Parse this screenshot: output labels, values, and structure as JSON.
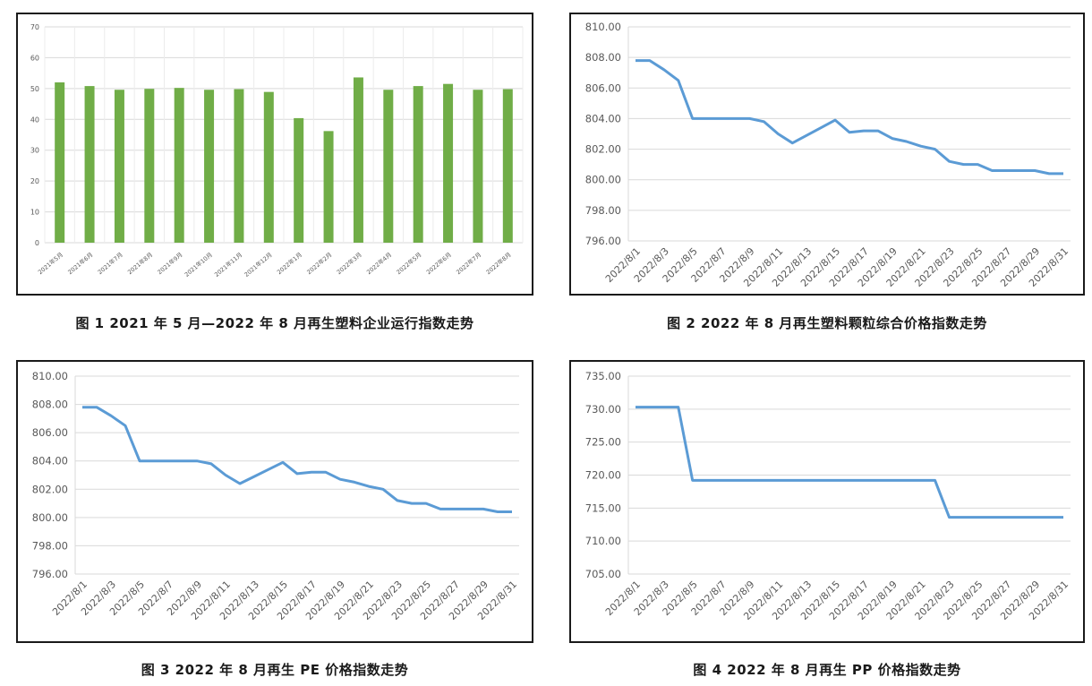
{
  "chart_data": [
    {
      "type": "bar",
      "caption": "图 1  2021 年 5 月—2022 年 8 月再生塑料企业运行指数走势",
      "categories": [
        "2021年5月",
        "2021年6月",
        "2021年7月",
        "2021年8月",
        "2021年9月",
        "2021年10月",
        "2021年11月",
        "2021年12月",
        "2022年1月",
        "2022年2月",
        "2022年3月",
        "2022年4月",
        "2022年5月",
        "2022年6月",
        "2022年7月",
        "2022年8月"
      ],
      "values": [
        52.0,
        50.8,
        49.6,
        49.9,
        50.2,
        49.6,
        49.8,
        48.9,
        40.4,
        36.2,
        53.6,
        49.6,
        50.8,
        51.5,
        49.6,
        49.8
      ],
      "ylim": [
        0,
        70
      ],
      "yticks": [
        "0",
        "10",
        "20",
        "30",
        "40",
        "50",
        "60",
        "70"
      ],
      "color": "#70ad47",
      "grid": true
    },
    {
      "type": "line",
      "caption": "图 2  2022 年 8 月再生塑料颗粒综合价格指数走势",
      "x": [
        "2022/8/1",
        "2022/8/2",
        "2022/8/3",
        "2022/8/4",
        "2022/8/5",
        "2022/8/6",
        "2022/8/7",
        "2022/8/8",
        "2022/8/9",
        "2022/8/10",
        "2022/8/11",
        "2022/8/12",
        "2022/8/13",
        "2022/8/14",
        "2022/8/15",
        "2022/8/16",
        "2022/8/17",
        "2022/8/18",
        "2022/8/19",
        "2022/8/20",
        "2022/8/21",
        "2022/8/22",
        "2022/8/23",
        "2022/8/24",
        "2022/8/25",
        "2022/8/26",
        "2022/8/27",
        "2022/8/28",
        "2022/8/29",
        "2022/8/30",
        "2022/8/31"
      ],
      "values": [
        807.8,
        807.8,
        807.2,
        806.5,
        804.0,
        804.0,
        804.0,
        804.0,
        804.0,
        803.8,
        803.0,
        802.4,
        802.9,
        803.4,
        803.9,
        803.1,
        803.2,
        803.2,
        802.7,
        802.5,
        802.2,
        802.0,
        801.2,
        801.0,
        801.0,
        800.6,
        800.6,
        800.6,
        800.6,
        800.4,
        800.4
      ],
      "ylim": [
        796,
        810
      ],
      "yticks": [
        "796.00",
        "798.00",
        "800.00",
        "802.00",
        "804.00",
        "806.00",
        "808.00",
        "810.00"
      ],
      "xticks": [
        "2022/8/1",
        "2022/8/3",
        "2022/8/5",
        "2022/8/7",
        "2022/8/9",
        "2022/8/11",
        "2022/8/13",
        "2022/8/15",
        "2022/8/17",
        "2022/8/19",
        "2022/8/21",
        "2022/8/23",
        "2022/8/25",
        "2022/8/27",
        "2022/8/29",
        "2022/8/31"
      ],
      "color": "#5b9bd5",
      "grid": true
    },
    {
      "type": "line",
      "caption": "图 3  2022 年 8 月再生 PE 价格指数走势",
      "x": [
        "2022/8/1",
        "2022/8/2",
        "2022/8/3",
        "2022/8/4",
        "2022/8/5",
        "2022/8/6",
        "2022/8/7",
        "2022/8/8",
        "2022/8/9",
        "2022/8/10",
        "2022/8/11",
        "2022/8/12",
        "2022/8/13",
        "2022/8/14",
        "2022/8/15",
        "2022/8/16",
        "2022/8/17",
        "2022/8/18",
        "2022/8/19",
        "2022/8/20",
        "2022/8/21",
        "2022/8/22",
        "2022/8/23",
        "2022/8/24",
        "2022/8/25",
        "2022/8/26",
        "2022/8/27",
        "2022/8/28",
        "2022/8/29",
        "2022/8/30",
        "2022/8/31"
      ],
      "values": [
        807.8,
        807.8,
        807.2,
        806.5,
        804.0,
        804.0,
        804.0,
        804.0,
        804.0,
        803.8,
        803.0,
        802.4,
        802.9,
        803.4,
        803.9,
        803.1,
        803.2,
        803.2,
        802.7,
        802.5,
        802.2,
        802.0,
        801.2,
        801.0,
        801.0,
        800.6,
        800.6,
        800.6,
        800.6,
        800.4,
        800.4
      ],
      "ylim": [
        796,
        810
      ],
      "yticks": [
        "796.00",
        "798.00",
        "800.00",
        "802.00",
        "804.00",
        "806.00",
        "808.00",
        "810.00"
      ],
      "xticks": [
        "2022/8/1",
        "2022/8/3",
        "2022/8/5",
        "2022/8/7",
        "2022/8/9",
        "2022/8/11",
        "2022/8/13",
        "2022/8/15",
        "2022/8/17",
        "2022/8/19",
        "2022/8/21",
        "2022/8/23",
        "2022/8/25",
        "2022/8/27",
        "2022/8/29",
        "2022/8/31"
      ],
      "color": "#5b9bd5",
      "grid": true
    },
    {
      "type": "line",
      "caption": "图 4  2022 年 8 月再生 PP 价格指数走势",
      "x": [
        "2022/8/1",
        "2022/8/2",
        "2022/8/3",
        "2022/8/4",
        "2022/8/5",
        "2022/8/6",
        "2022/8/7",
        "2022/8/8",
        "2022/8/9",
        "2022/8/10",
        "2022/8/11",
        "2022/8/12",
        "2022/8/13",
        "2022/8/14",
        "2022/8/15",
        "2022/8/16",
        "2022/8/17",
        "2022/8/18",
        "2022/8/19",
        "2022/8/20",
        "2022/8/21",
        "2022/8/22",
        "2022/8/23",
        "2022/8/24",
        "2022/8/25",
        "2022/8/26",
        "2022/8/27",
        "2022/8/28",
        "2022/8/29",
        "2022/8/30",
        "2022/8/31"
      ],
      "values": [
        730.3,
        730.3,
        730.3,
        730.3,
        719.2,
        719.2,
        719.2,
        719.2,
        719.2,
        719.2,
        719.2,
        719.2,
        719.2,
        719.2,
        719.2,
        719.2,
        719.2,
        719.2,
        719.2,
        719.2,
        719.2,
        719.2,
        713.6,
        713.6,
        713.6,
        713.6,
        713.6,
        713.6,
        713.6,
        713.6,
        713.6
      ],
      "ylim": [
        705,
        735
      ],
      "yticks": [
        "705.00",
        "710.00",
        "715.00",
        "720.00",
        "725.00",
        "730.00",
        "735.00"
      ],
      "xticks": [
        "2022/8/1",
        "2022/8/3",
        "2022/8/5",
        "2022/8/7",
        "2022/8/9",
        "2022/8/11",
        "2022/8/13",
        "2022/8/15",
        "2022/8/17",
        "2022/8/19",
        "2022/8/21",
        "2022/8/23",
        "2022/8/25",
        "2022/8/27",
        "2022/8/29",
        "2022/8/31"
      ],
      "color": "#5b9bd5",
      "grid": true
    }
  ]
}
